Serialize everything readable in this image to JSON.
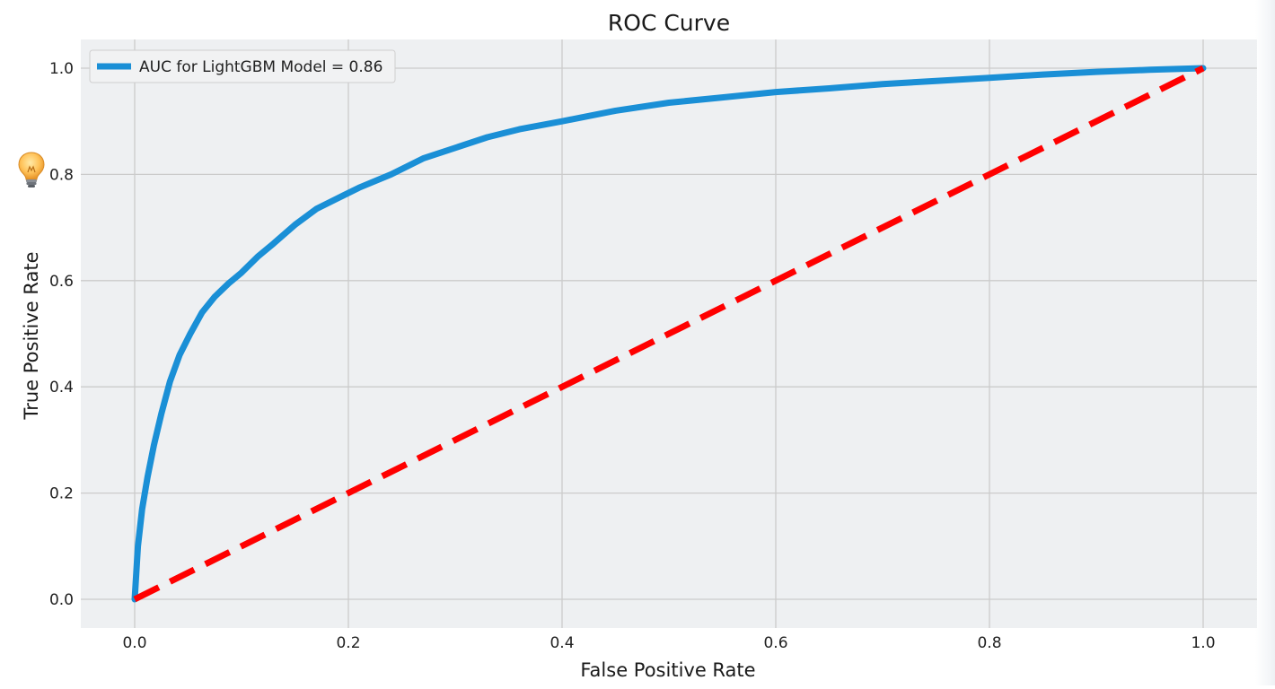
{
  "chart_data": {
    "type": "line",
    "title": "ROC Curve",
    "xlabel": "False Positive Rate",
    "ylabel": "True Positive Rate",
    "xlim": [
      -0.1,
      1.05
    ],
    "ylim": [
      -0.055,
      1.05
    ],
    "xticks": [
      "0.0",
      "0.2",
      "0.4",
      "0.6",
      "0.8",
      "1.0"
    ],
    "yticks": [
      "0.0",
      "0.2",
      "0.4",
      "0.6",
      "0.8",
      "1.0"
    ],
    "grid": true,
    "legend_position": "top-left",
    "background_color": "#eef0f2",
    "grid_color": "#cbcbcb",
    "series": [
      {
        "name": "AUC for LightGBM Model = 0.86",
        "color": "#1a8fd6",
        "style": "solid",
        "x": [
          0.0,
          0.003,
          0.007,
          0.012,
          0.018,
          0.025,
          0.033,
          0.042,
          0.052,
          0.063,
          0.075,
          0.088,
          0.1,
          0.115,
          0.13,
          0.15,
          0.17,
          0.19,
          0.21,
          0.24,
          0.27,
          0.3,
          0.33,
          0.36,
          0.4,
          0.45,
          0.5,
          0.55,
          0.6,
          0.65,
          0.7,
          0.75,
          0.8,
          0.85,
          0.9,
          0.95,
          1.0
        ],
        "y": [
          0.0,
          0.1,
          0.17,
          0.23,
          0.29,
          0.35,
          0.41,
          0.46,
          0.5,
          0.54,
          0.57,
          0.595,
          0.615,
          0.645,
          0.67,
          0.705,
          0.735,
          0.755,
          0.775,
          0.8,
          0.83,
          0.85,
          0.87,
          0.885,
          0.9,
          0.92,
          0.935,
          0.945,
          0.955,
          0.962,
          0.97,
          0.976,
          0.982,
          0.988,
          0.993,
          0.997,
          1.0
        ]
      },
      {
        "name": "",
        "color": "#ff0000",
        "style": "dashed",
        "x": [
          0.0,
          1.0
        ],
        "y": [
          0.0,
          1.0
        ]
      }
    ]
  },
  "decoration": {
    "icon": "lightbulb-icon"
  }
}
